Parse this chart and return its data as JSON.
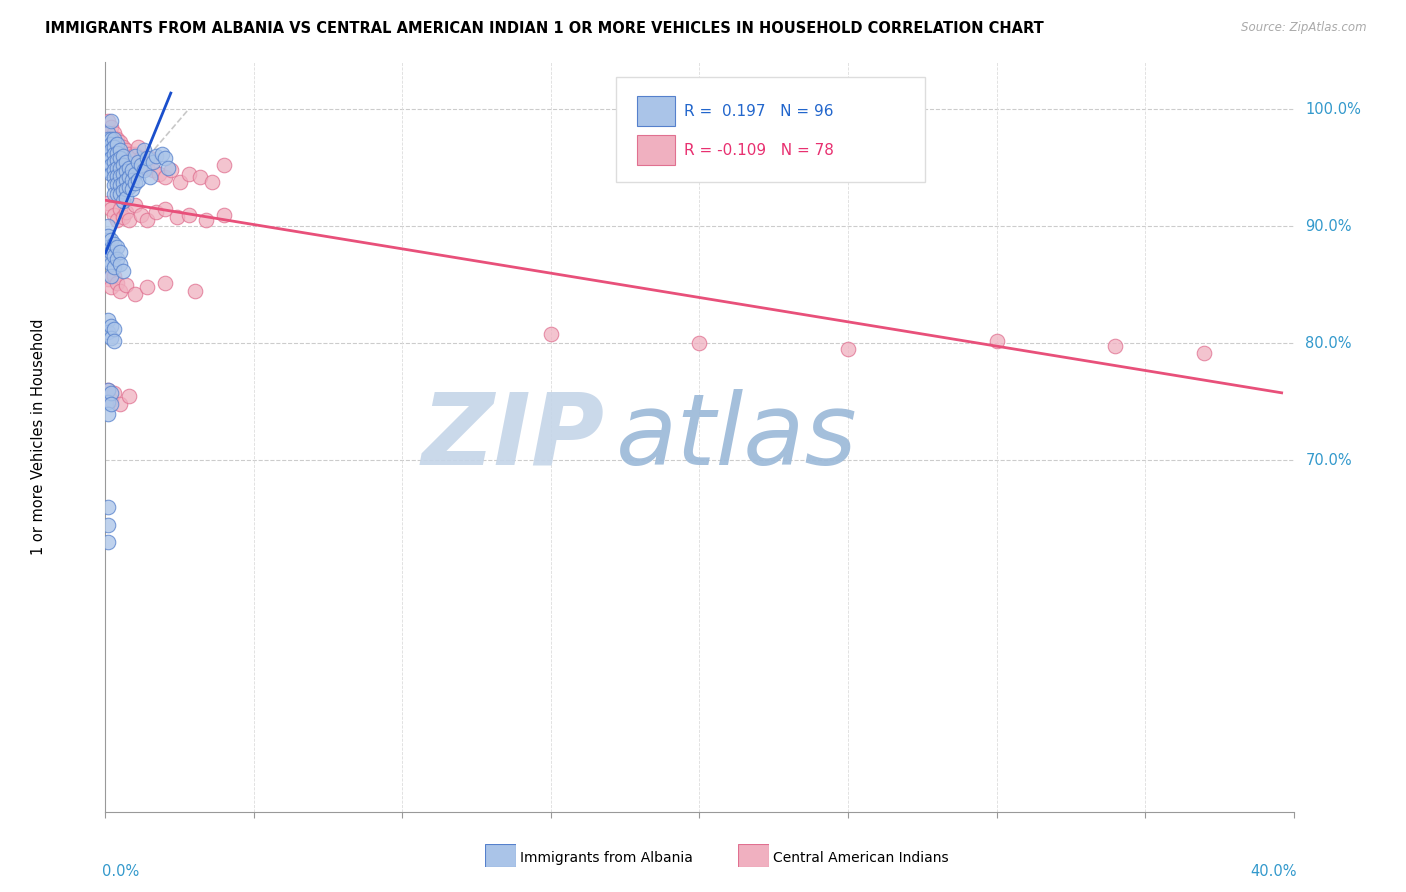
{
  "title": "IMMIGRANTS FROM ALBANIA VS CENTRAL AMERICAN INDIAN 1 OR MORE VEHICLES IN HOUSEHOLD CORRELATION CHART",
  "source": "Source: ZipAtlas.com",
  "ylabel": "1 or more Vehicles in Household",
  "legend_albania": "Immigrants from Albania",
  "legend_central": "Central American Indians",
  "r_albania": 0.197,
  "n_albania": 96,
  "r_central": -0.109,
  "n_central": 78,
  "albania_color": "#aac4e8",
  "albania_edge": "#5580cc",
  "central_color": "#f0b0c0",
  "central_edge": "#e07090",
  "albania_line_color": "#1a4fcc",
  "central_line_color": "#e8507a",
  "ref_line_color": "#bbbbbb",
  "xmin": 0.0,
  "xmax": 0.4,
  "ymin": 0.4,
  "ymax": 1.04,
  "y_tick_vals": [
    1.0,
    0.9,
    0.8,
    0.7
  ],
  "y_tick_labels": [
    "100.0%",
    "90.0%",
    "80.0%",
    "70.0%"
  ],
  "watermark_zip": "ZIP",
  "watermark_atlas": "atlas",
  "watermark_zip_color": "#c8d8ec",
  "watermark_atlas_color": "#b8c8e8",
  "albania_x": [
    0.001,
    0.001,
    0.001,
    0.001,
    0.001,
    0.001,
    0.002,
    0.002,
    0.002,
    0.002,
    0.002,
    0.002,
    0.002,
    0.003,
    0.003,
    0.003,
    0.003,
    0.003,
    0.003,
    0.003,
    0.003,
    0.004,
    0.004,
    0.004,
    0.004,
    0.004,
    0.004,
    0.004,
    0.005,
    0.005,
    0.005,
    0.005,
    0.005,
    0.005,
    0.006,
    0.006,
    0.006,
    0.006,
    0.006,
    0.006,
    0.007,
    0.007,
    0.007,
    0.007,
    0.007,
    0.008,
    0.008,
    0.008,
    0.009,
    0.009,
    0.009,
    0.01,
    0.01,
    0.01,
    0.011,
    0.011,
    0.012,
    0.013,
    0.013,
    0.014,
    0.015,
    0.016,
    0.017,
    0.019,
    0.02,
    0.021,
    0.001,
    0.001,
    0.001,
    0.001,
    0.002,
    0.002,
    0.002,
    0.002,
    0.003,
    0.003,
    0.003,
    0.004,
    0.004,
    0.005,
    0.005,
    0.006,
    0.001,
    0.001,
    0.002,
    0.002,
    0.003,
    0.003,
    0.001,
    0.001,
    0.001,
    0.002,
    0.002,
    0.001,
    0.001,
    0.001
  ],
  "albania_y": [
    0.98,
    0.975,
    0.965,
    0.96,
    0.955,
    0.948,
    0.99,
    0.975,
    0.97,
    0.965,
    0.958,
    0.952,
    0.945,
    0.975,
    0.968,
    0.962,
    0.955,
    0.948,
    0.942,
    0.935,
    0.928,
    0.97,
    0.963,
    0.957,
    0.95,
    0.943,
    0.936,
    0.928,
    0.965,
    0.958,
    0.95,
    0.943,
    0.935,
    0.928,
    0.96,
    0.952,
    0.945,
    0.937,
    0.93,
    0.922,
    0.955,
    0.947,
    0.94,
    0.932,
    0.924,
    0.95,
    0.942,
    0.934,
    0.948,
    0.94,
    0.932,
    0.96,
    0.945,
    0.937,
    0.955,
    0.94,
    0.952,
    0.965,
    0.948,
    0.958,
    0.942,
    0.955,
    0.96,
    0.962,
    0.958,
    0.95,
    0.9,
    0.892,
    0.882,
    0.872,
    0.888,
    0.878,
    0.868,
    0.858,
    0.885,
    0.875,
    0.865,
    0.882,
    0.872,
    0.878,
    0.868,
    0.862,
    0.82,
    0.81,
    0.815,
    0.805,
    0.812,
    0.802,
    0.76,
    0.75,
    0.74,
    0.758,
    0.748,
    0.66,
    0.645,
    0.63
  ],
  "central_x": [
    0.001,
    0.001,
    0.001,
    0.002,
    0.002,
    0.002,
    0.003,
    0.003,
    0.003,
    0.003,
    0.004,
    0.004,
    0.004,
    0.005,
    0.005,
    0.005,
    0.006,
    0.006,
    0.007,
    0.007,
    0.008,
    0.008,
    0.009,
    0.009,
    0.01,
    0.011,
    0.011,
    0.012,
    0.013,
    0.014,
    0.015,
    0.016,
    0.018,
    0.02,
    0.022,
    0.025,
    0.028,
    0.032,
    0.036,
    0.04,
    0.001,
    0.002,
    0.003,
    0.004,
    0.005,
    0.006,
    0.007,
    0.008,
    0.01,
    0.012,
    0.014,
    0.017,
    0.02,
    0.024,
    0.028,
    0.034,
    0.04,
    0.001,
    0.002,
    0.003,
    0.004,
    0.005,
    0.007,
    0.01,
    0.014,
    0.02,
    0.03,
    0.15,
    0.2,
    0.25,
    0.3,
    0.34,
    0.37,
    0.001,
    0.002,
    0.003,
    0.005,
    0.008
  ],
  "central_y": [
    0.99,
    0.98,
    0.97,
    0.985,
    0.975,
    0.965,
    0.98,
    0.972,
    0.963,
    0.954,
    0.975,
    0.967,
    0.958,
    0.972,
    0.963,
    0.954,
    0.968,
    0.959,
    0.965,
    0.956,
    0.962,
    0.953,
    0.958,
    0.95,
    0.962,
    0.968,
    0.955,
    0.958,
    0.955,
    0.95,
    0.958,
    0.948,
    0.945,
    0.942,
    0.948,
    0.938,
    0.945,
    0.942,
    0.938,
    0.952,
    0.92,
    0.915,
    0.91,
    0.905,
    0.915,
    0.908,
    0.912,
    0.905,
    0.918,
    0.91,
    0.905,
    0.912,
    0.915,
    0.908,
    0.91,
    0.905,
    0.91,
    0.855,
    0.848,
    0.858,
    0.852,
    0.845,
    0.85,
    0.842,
    0.848,
    0.852,
    0.845,
    0.808,
    0.8,
    0.795,
    0.802,
    0.798,
    0.792,
    0.76,
    0.752,
    0.758,
    0.748,
    0.755
  ]
}
